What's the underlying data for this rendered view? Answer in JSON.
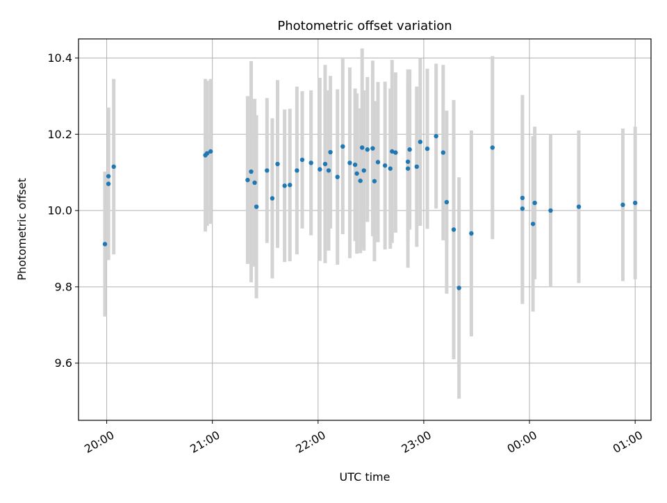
{
  "chart_data": {
    "type": "scatter",
    "title": "Photometric offset variation",
    "xlabel": "UTC time",
    "ylabel": "Photometric offset",
    "x_unit": "time of day (UTC)",
    "xlim": [
      "19:44",
      "01:09"
    ],
    "ylim": [
      9.45,
      10.45
    ],
    "x_ticks": [
      "20:00",
      "21:00",
      "22:00",
      "23:00",
      "00:00",
      "01:00"
    ],
    "y_ticks": [
      "9.6",
      "9.8",
      "10.0",
      "10.2",
      "10.4"
    ],
    "y_tick_values": [
      9.6,
      9.8,
      10.0,
      10.2,
      10.4
    ],
    "grid": true,
    "legend": false,
    "colors": {
      "marker": "#1f77b4",
      "errorbar": "#d3d3d3",
      "grid": "#b0b0b0"
    },
    "series": [
      {
        "x": [
          "19:59",
          "20:01",
          "20:01",
          "20:04",
          "20:56",
          "20:57",
          "20:59",
          "21:20",
          "21:22",
          "21:24",
          "21:25",
          "21:31",
          "21:34",
          "21:37",
          "21:41",
          "21:44",
          "21:48",
          "21:51",
          "21:56",
          "22:01",
          "22:04",
          "22:06",
          "22:07",
          "22:11",
          "22:14",
          "22:18",
          "22:21",
          "22:22",
          "22:24",
          "22:25",
          "22:26",
          "22:28",
          "22:31",
          "22:32",
          "22:34",
          "22:38",
          "22:41",
          "22:42",
          "22:44",
          "22:51",
          "22:51",
          "22:52",
          "22:56",
          "22:58",
          "23:02",
          "23:07",
          "23:11",
          "23:13",
          "23:17",
          "23:20",
          "23:27",
          "23:39",
          "23:56",
          "23:56",
          "00:02",
          "00:03",
          "00:12",
          "00:28",
          "00:53",
          "01:00"
        ],
        "y": [
          9.912,
          10.07,
          10.09,
          10.115,
          10.145,
          10.15,
          10.155,
          10.08,
          10.102,
          10.073,
          10.01,
          10.105,
          10.032,
          10.122,
          10.065,
          10.067,
          10.105,
          10.133,
          10.125,
          10.108,
          10.122,
          10.105,
          10.153,
          10.088,
          10.168,
          10.125,
          10.12,
          10.097,
          10.078,
          10.165,
          10.105,
          10.16,
          10.163,
          10.077,
          10.127,
          10.118,
          10.11,
          10.155,
          10.152,
          10.11,
          10.128,
          10.16,
          10.115,
          10.18,
          10.162,
          10.195,
          10.152,
          10.022,
          9.95,
          9.797,
          9.94,
          10.165,
          10.033,
          10.005,
          9.965,
          10.02,
          10.0,
          10.01,
          10.015,
          10.02
        ],
        "yerr": [
          0.19,
          0.2,
          0.18,
          0.23,
          0.2,
          0.19,
          0.19,
          0.22,
          0.29,
          0.22,
          0.24,
          0.19,
          0.21,
          0.22,
          0.2,
          0.2,
          0.22,
          0.18,
          0.19,
          0.24,
          0.26,
          0.21,
          0.2,
          0.23,
          0.23,
          0.25,
          0.2,
          0.21,
          0.19,
          0.26,
          0.21,
          0.19,
          0.23,
          0.21,
          0.21,
          0.22,
          0.21,
          0.24,
          0.21,
          0.26,
          0.21,
          0.21,
          0.21,
          0.22,
          0.21,
          0.19,
          0.23,
          0.24,
          0.34,
          0.29,
          0.27,
          0.24,
          0.27,
          0.25,
          0.23,
          0.2,
          0.2,
          0.2,
          0.2,
          0.2
        ]
      }
    ]
  }
}
